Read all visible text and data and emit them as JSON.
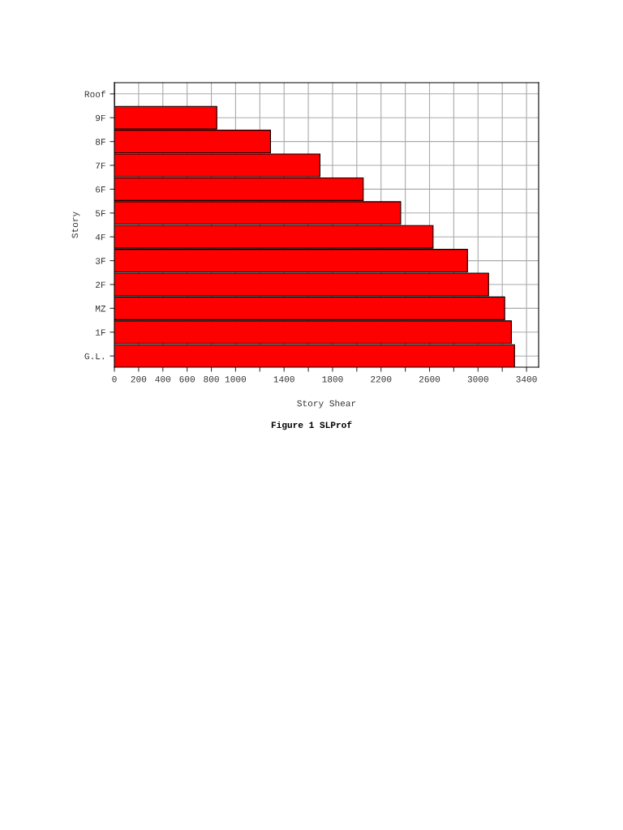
{
  "chart_data": {
    "type": "bar",
    "orientation": "horizontal",
    "categories": [
      "Roof",
      "9F",
      "8F",
      "7F",
      "6F",
      "5F",
      "4F",
      "3F",
      "2F",
      "MZ",
      "1F",
      "G.L."
    ],
    "values": [
      0,
      845,
      1288,
      1696,
      2053,
      2362,
      2629,
      2913,
      3087,
      3220,
      3275,
      3301
    ],
    "color": "#ff0000",
    "xlabel": "Story Shear",
    "ylabel": "Story",
    "xlim": [
      0,
      3500
    ],
    "xticks": [
      0,
      200,
      400,
      600,
      800,
      1000,
      {
        "value": 1200,
        "label": null
      },
      1400,
      {
        "value": 1600,
        "label": null
      },
      1800,
      {
        "value": 2000,
        "label": null
      },
      2200,
      {
        "value": 2400,
        "label": null
      },
      2600,
      {
        "value": 2800,
        "label": null
      },
      3000,
      {
        "value": 3200,
        "label": null
      },
      3400
    ],
    "grid": true,
    "annotations": [
      "Figure 1 SLProf"
    ]
  }
}
